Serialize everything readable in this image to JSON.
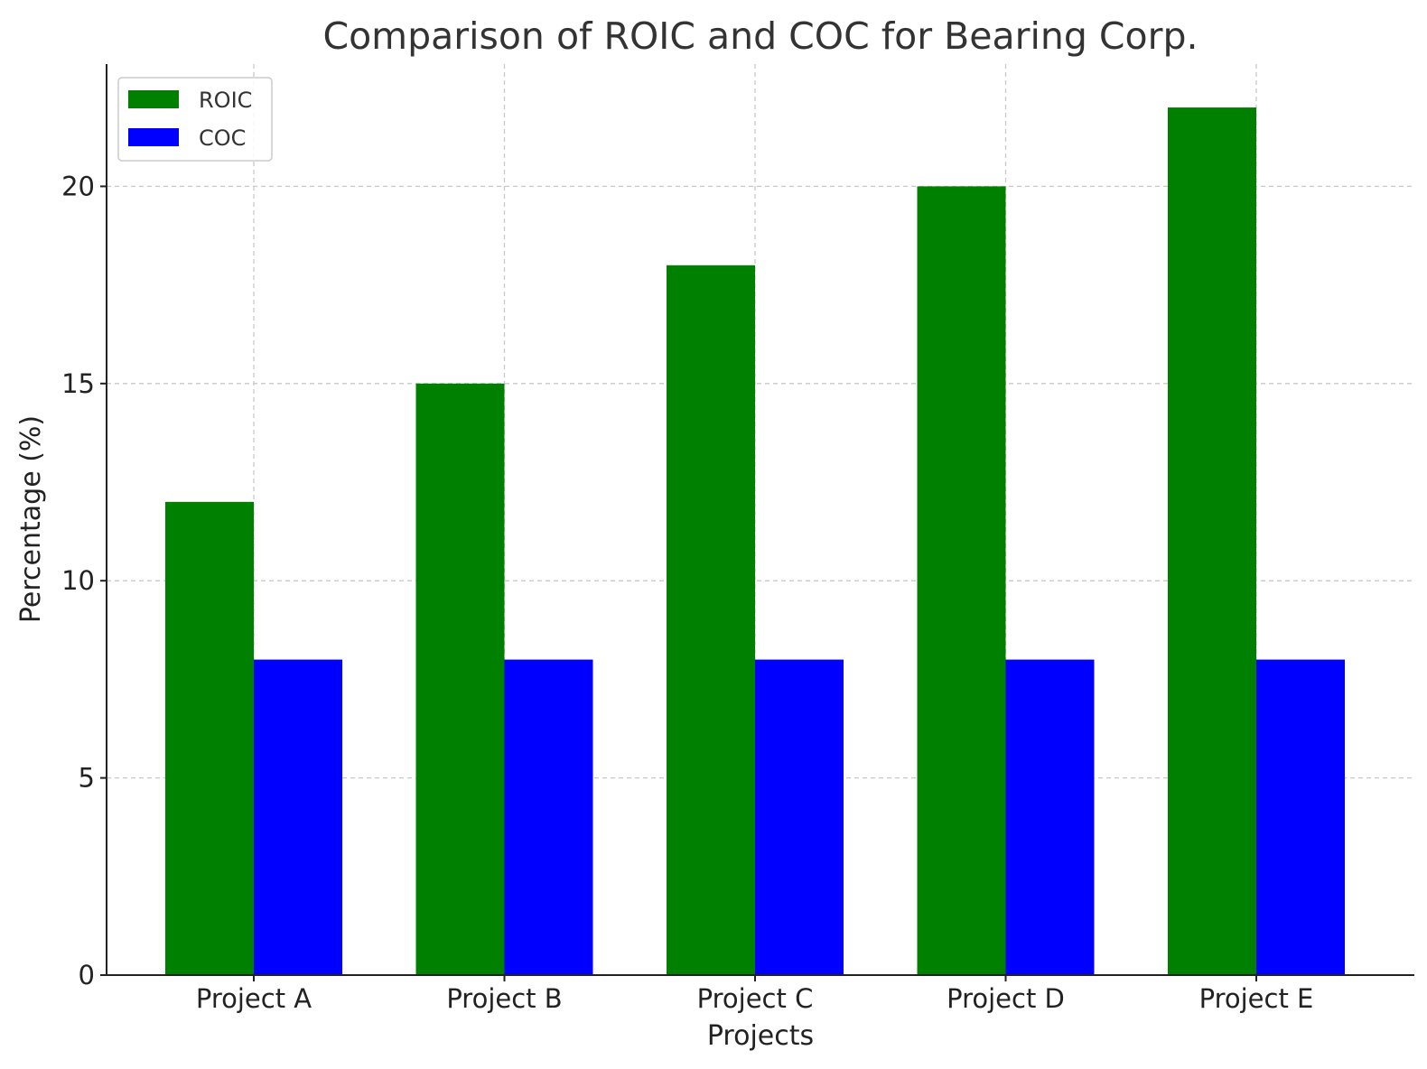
{
  "chart_data": {
    "type": "bar",
    "title": "Comparison of ROIC and COC for Bearing Corp.",
    "xlabel": "Projects",
    "ylabel": "Percentage (%)",
    "categories": [
      "Project A",
      "Project B",
      "Project C",
      "Project D",
      "Project E"
    ],
    "series": [
      {
        "name": "ROIC",
        "color": "#008000",
        "values": [
          12,
          15,
          18,
          20,
          22
        ]
      },
      {
        "name": "COC",
        "color": "#0000ff",
        "values": [
          8,
          8,
          8,
          8,
          8
        ]
      }
    ],
    "yticks": [
      "0",
      "5",
      "10",
      "15",
      "20"
    ],
    "ylim": [
      0,
      23.1
    ],
    "grid": true,
    "legend_position": "top-left"
  }
}
